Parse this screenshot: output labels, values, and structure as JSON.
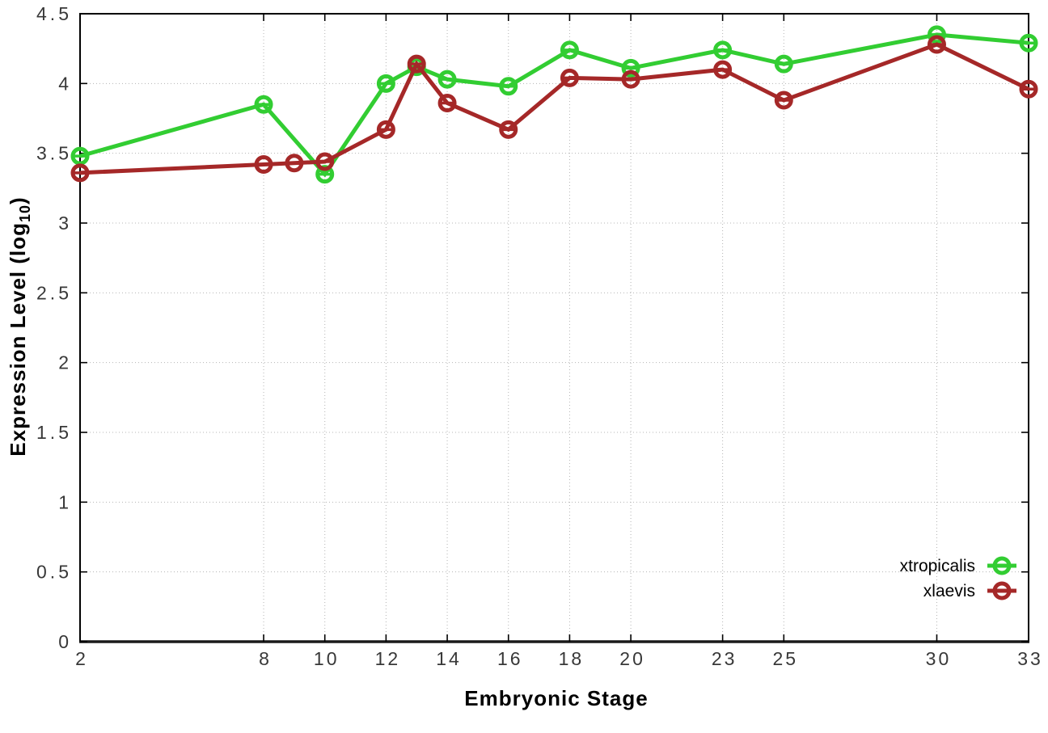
{
  "figure": {
    "background": "#ffffff"
  },
  "axes": {
    "xlabel": "Embryonic Stage",
    "ylabel_main": "Expression Level (log",
    "ylabel_sub": "10",
    "ylabel_suffix": ")"
  },
  "legend": {
    "entries": [
      {
        "label": "xtropicalis",
        "color": "#32cd32"
      },
      {
        "label": "xlaevis",
        "color": "#a52828"
      }
    ],
    "position": "bottom-right"
  },
  "chart_data": {
    "type": "line",
    "title": "",
    "xlabel": "Embryonic Stage",
    "ylabel": "Expression Level (log10)",
    "xlim": [
      2,
      33
    ],
    "ylim": [
      0,
      4.5
    ],
    "grid": true,
    "legend_position": "bottom-right",
    "marker": "open-circle",
    "x_ticks": {
      "values": [
        2,
        8,
        10,
        12,
        14,
        16,
        18,
        20,
        23,
        25,
        30,
        33
      ],
      "labels": [
        "2",
        "8",
        "10",
        "12",
        "14",
        "16",
        "18",
        "20",
        "23",
        "25",
        "30",
        "33"
      ]
    },
    "y_ticks": {
      "values": [
        0,
        0.5,
        1,
        1.5,
        2,
        2.5,
        3,
        3.5,
        4,
        4.5
      ],
      "labels": [
        "0",
        "0.5",
        "1",
        "1.5",
        "2",
        "2.5",
        "3",
        "3.5",
        "4",
        "4.5"
      ]
    },
    "series": [
      {
        "name": "xtropicalis",
        "color": "#32cd32",
        "x": [
          2,
          8,
          10,
          12,
          13,
          14,
          16,
          18,
          20,
          23,
          25,
          30,
          33
        ],
        "y": [
          3.48,
          3.85,
          3.35,
          4.0,
          4.12,
          4.03,
          3.98,
          4.24,
          4.11,
          4.24,
          4.14,
          4.35,
          4.29
        ]
      },
      {
        "name": "xlaevis",
        "color": "#a52828",
        "x": [
          2,
          8,
          9,
          10,
          12,
          13,
          14,
          16,
          18,
          20,
          23,
          25,
          30,
          33
        ],
        "y": [
          3.36,
          3.42,
          3.43,
          3.44,
          3.67,
          4.14,
          3.86,
          3.67,
          4.04,
          4.03,
          4.1,
          3.88,
          4.28,
          3.96
        ]
      }
    ]
  }
}
